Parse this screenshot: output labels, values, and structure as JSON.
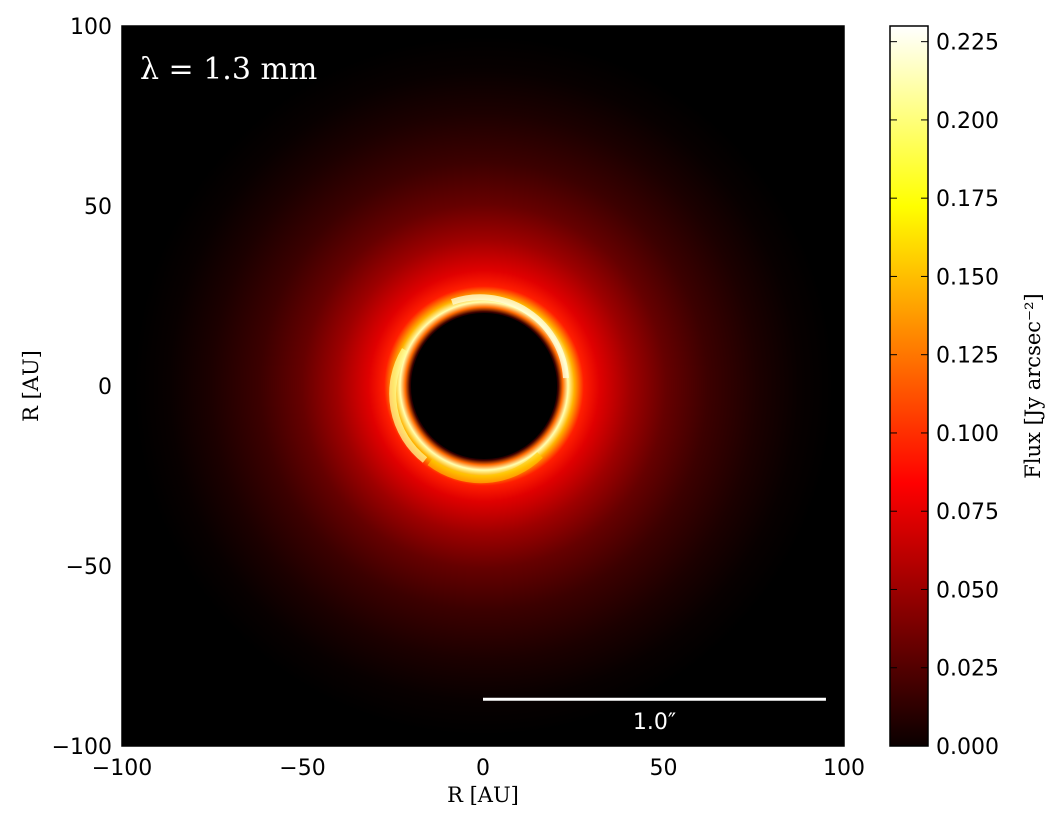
{
  "chart_data": [
    {
      "type": "heatmap",
      "title": "",
      "xlabel": "R [AU]",
      "ylabel": "R [AU]",
      "xlim": [
        -100,
        100
      ],
      "ylim": [
        -100,
        100
      ],
      "xticks": [
        -100,
        -50,
        0,
        50,
        100
      ],
      "yticks": [
        -100,
        -50,
        0,
        50,
        100
      ],
      "xtick_labels": [
        "−100",
        "−50",
        "0",
        "50",
        "100"
      ],
      "ytick_labels": [
        "−100",
        "−50",
        "0",
        "50",
        "100"
      ],
      "grid": false,
      "annotation": "λ = 1.3 mm",
      "scalebar": {
        "label": "1.0″",
        "x_start": 0,
        "x_end": 95,
        "y": -87
      },
      "colormap": "hot",
      "description_values": {
        "cavity_radius_au": 20,
        "ring_peak_radius_au": 24,
        "ring_peak_flux": 0.22,
        "outer_emission_extent_au": 95
      },
      "colorbar": {
        "label": "Flux  [Jy arcsec⁻²]",
        "min": 0.0,
        "max": 0.23,
        "ticks": [
          0.0,
          0.025,
          0.05,
          0.075,
          0.1,
          0.125,
          0.15,
          0.175,
          0.2,
          0.225
        ],
        "tick_labels": [
          "0.000",
          "0.025",
          "0.050",
          "0.075",
          "0.100",
          "0.125",
          "0.150",
          "0.175",
          "0.200",
          "0.225"
        ]
      }
    }
  ]
}
